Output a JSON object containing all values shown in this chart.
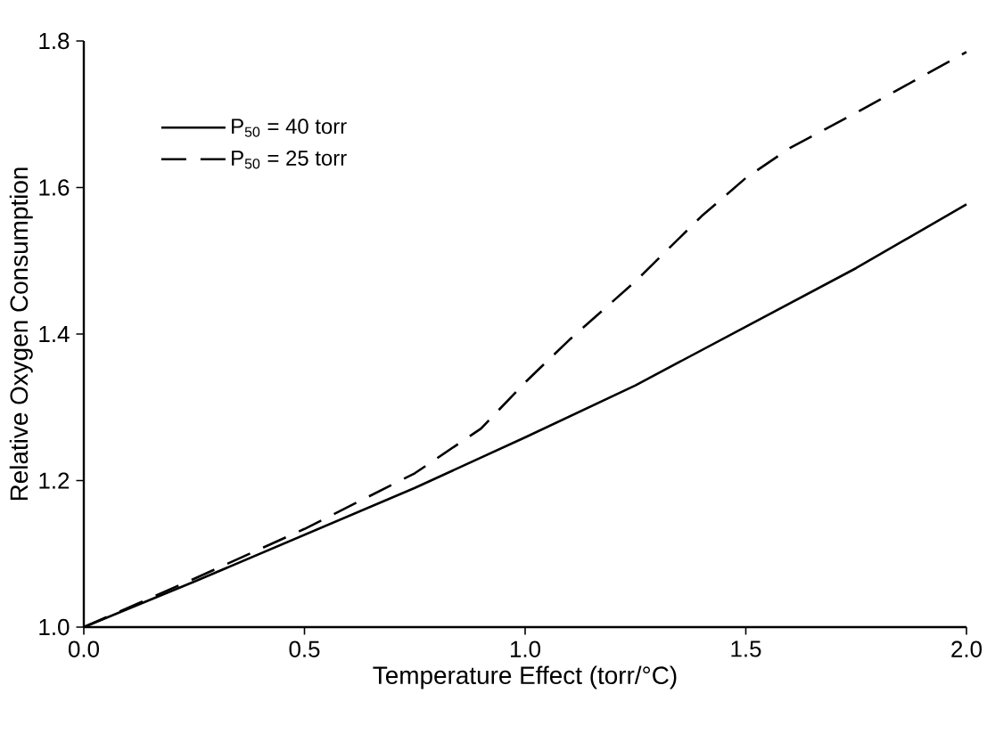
{
  "chart_data": {
    "type": "line",
    "xlabel": "Temperature Effect (torr/°C)",
    "ylabel": "Relative Oxygen Consumption",
    "xlim": [
      0,
      2
    ],
    "ylim": [
      1,
      1.8
    ],
    "xticks": [
      {
        "value": 0,
        "label": "0.0"
      },
      0.5,
      {
        "value": 1,
        "label": "1.0"
      },
      1.5,
      {
        "value": 2,
        "label": "2.0"
      }
    ],
    "yticks": [
      {
        "value": 1,
        "label": "1.0"
      },
      1.2,
      1.4,
      1.6,
      1.8
    ],
    "grid": false,
    "legend": "top left",
    "marker": "none",
    "series": [
      {
        "name": "P$_{50}$ = 40 torr",
        "color": "#000000",
        "line_style": "solid",
        "x": [
          0,
          0.25,
          0.5,
          0.75,
          1.0,
          1.25,
          1.5,
          1.75,
          2.0
        ],
        "values": [
          1.0,
          1.062,
          1.126,
          1.19,
          1.259,
          1.33,
          1.41,
          1.49,
          1.577
        ]
      },
      {
        "name": "P$_{50}$ = 25 torr",
        "color": "#000000",
        "line_style": "dashed",
        "x": [
          0,
          0.25,
          0.5,
          0.75,
          0.9,
          1.0,
          1.1,
          1.25,
          1.4,
          1.5,
          1.6,
          1.75,
          2.0
        ],
        "values": [
          1.0,
          1.066,
          1.134,
          1.21,
          1.271,
          1.334,
          1.392,
          1.472,
          1.561,
          1.613,
          1.654,
          1.702,
          1.785
        ]
      }
    ]
  }
}
